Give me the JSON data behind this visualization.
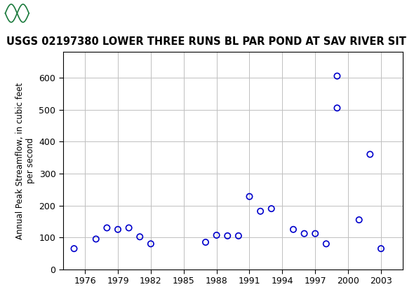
{
  "title": "USGS 02197380 LOWER THREE RUNS BL PAR POND AT SAV RIVER SITE, SC",
  "ylabel": "Annual Peak Streamflow, in cubic feet\nper second",
  "years": [
    1975,
    1977,
    1978,
    1979,
    1980,
    1981,
    1982,
    1987,
    1988,
    1989,
    1990,
    1991,
    1992,
    1993,
    1995,
    1996,
    1997,
    1998,
    1999,
    1999,
    2001,
    2002,
    2003
  ],
  "flows": [
    65,
    95,
    130,
    125,
    130,
    102,
    80,
    85,
    107,
    105,
    105,
    228,
    182,
    190,
    125,
    112,
    112,
    80,
    505,
    605,
    155,
    360,
    65
  ],
  "marker_color": "#0000cc",
  "marker_size": 6,
  "marker_linewidth": 1.2,
  "grid_color": "#c0c0c0",
  "header_color": "#1a7a3c",
  "header_text": "USGS",
  "xlim": [
    1974,
    2005
  ],
  "ylim": [
    0,
    680
  ],
  "xticks": [
    1976,
    1979,
    1982,
    1985,
    1988,
    1991,
    1994,
    1997,
    2000,
    2003
  ],
  "yticks": [
    0,
    100,
    200,
    300,
    400,
    500,
    600
  ],
  "title_fontsize": 10.5,
  "axis_fontsize": 8.5,
  "tick_fontsize": 9
}
